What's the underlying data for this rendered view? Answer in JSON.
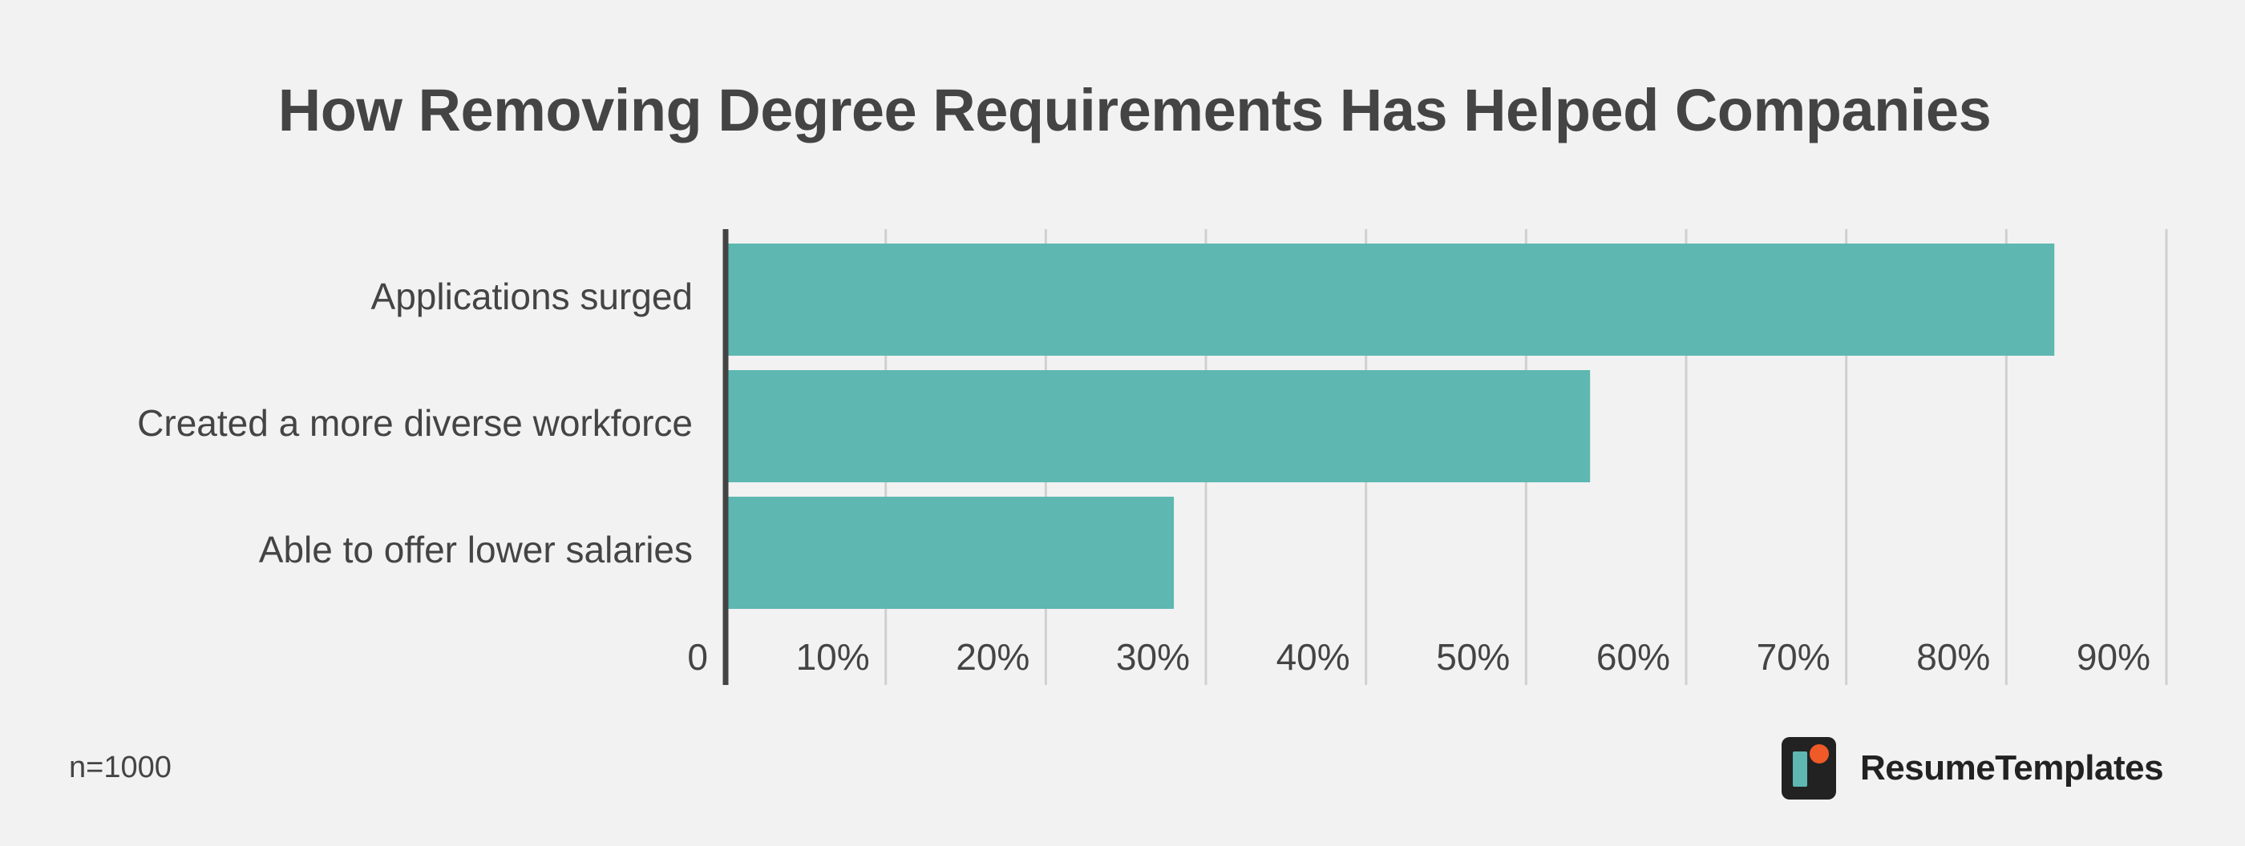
{
  "title": "How Removing Degree Requirements Has Helped Companies",
  "note": "n=1000",
  "brand": {
    "name": "ResumeTemplates",
    "logo_icon": "resumetemplates-logo-icon"
  },
  "colors": {
    "background": "#f2f2f2",
    "bar": "#5eb7b1",
    "text": "#444444",
    "grid": "#d0d0d0",
    "axis": "#444444"
  },
  "chart_data": {
    "type": "bar",
    "orientation": "horizontal",
    "title": "How Removing Degree Requirements Has Helped Companies",
    "categories": [
      "Applications surged",
      "Created a more diverse workforce",
      "Able to offer lower salaries"
    ],
    "values": [
      83,
      54,
      28
    ],
    "xlim": [
      0,
      90
    ],
    "xticks": [
      "0",
      "10%",
      "20%",
      "30%",
      "40%",
      "50%",
      "60%",
      "70%",
      "80%",
      "90%"
    ],
    "xlabel": "",
    "ylabel": "",
    "grid": true,
    "legend": false
  }
}
